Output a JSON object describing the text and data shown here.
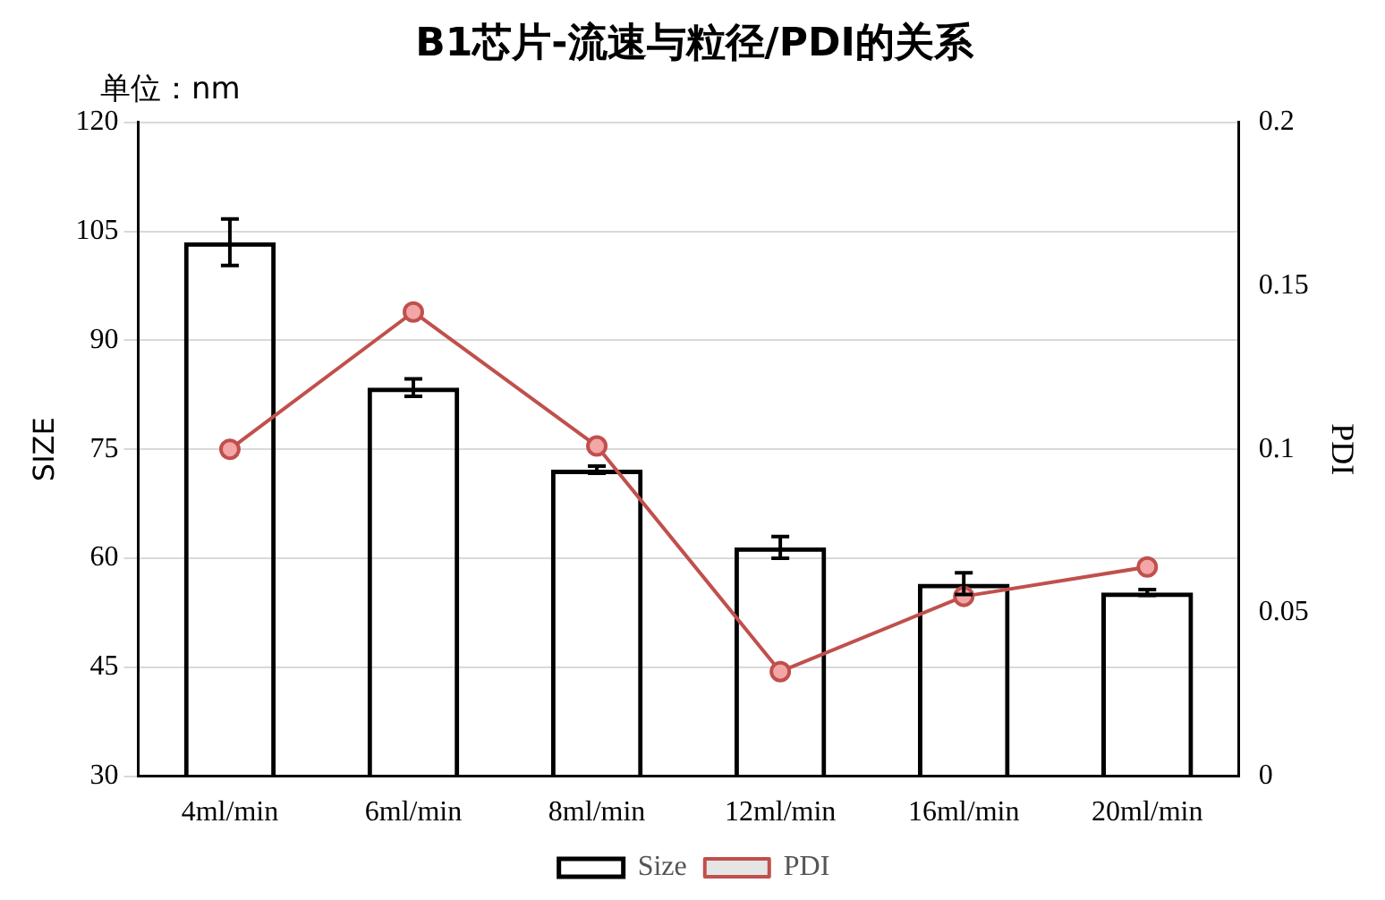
{
  "chart_data": {
    "type": "bar",
    "title": "B1芯片-流速与粒径/PDI的关系",
    "ylabel": "SIZE",
    "y2label": "PDI",
    "annotations": [
      "单位：nm"
    ],
    "categories": [
      "4ml/min",
      "6ml/min",
      "8ml/min",
      "12ml/min",
      "16ml/min",
      "20ml/min"
    ],
    "series": [
      {
        "name": "Size",
        "color": "#000000",
        "values": [
          103.5,
          83.5,
          72.2,
          61.5,
          56.5,
          55.3
        ],
        "errors": [
          3.2,
          1.2,
          0.5,
          1.5,
          1.5,
          0.4
        ]
      },
      {
        "name": "PDI",
        "type": "line",
        "axis": "y2",
        "color": "#c0504d",
        "marker": "circle",
        "values": [
          0.1,
          0.142,
          0.101,
          0.032,
          0.055,
          0.064
        ]
      }
    ],
    "ylim": [
      30,
      120
    ],
    "yticks": [
      30,
      45,
      60,
      75,
      90,
      105,
      120
    ],
    "y2lim": [
      0,
      0.2
    ],
    "y2ticks": [
      0,
      0.05,
      0.1,
      0.15,
      0.2
    ],
    "grid": "y",
    "legend": "bottom"
  }
}
